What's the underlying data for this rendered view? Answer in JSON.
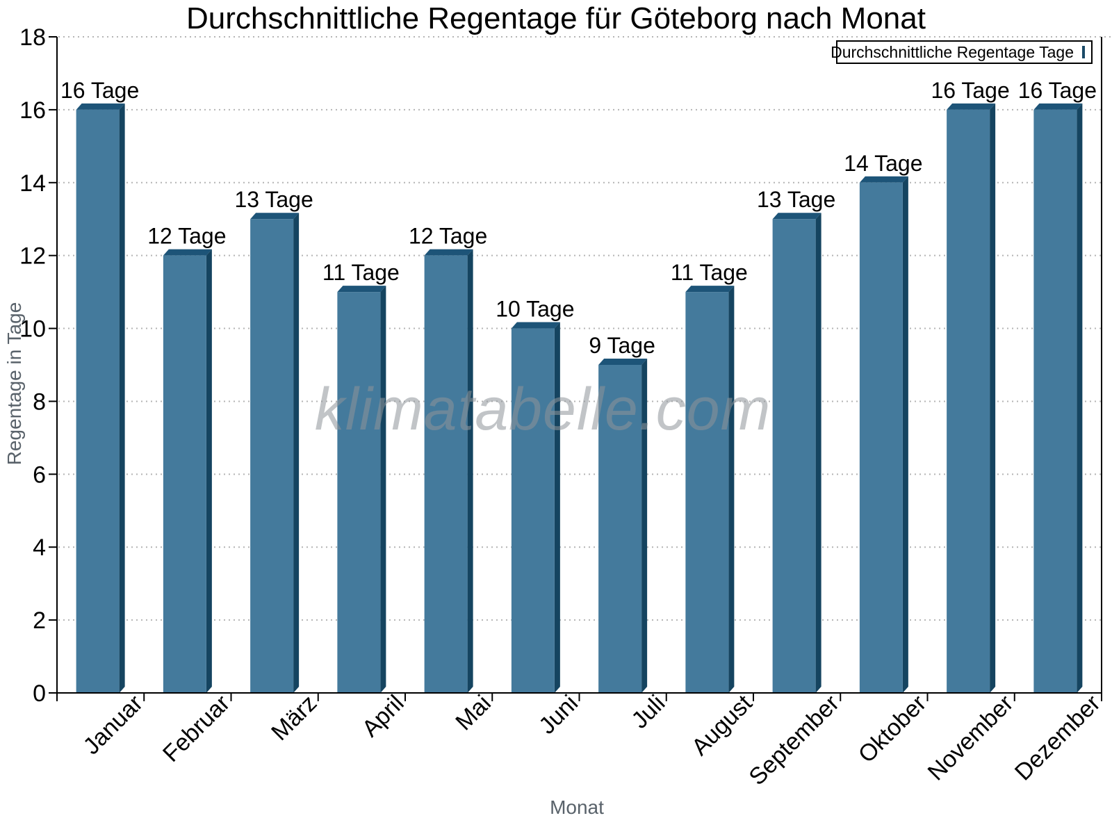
{
  "chart_data": {
    "type": "bar",
    "title": "Durchschnittliche Regentage für Göteborg nach Monat",
    "xlabel": "Monat",
    "ylabel": "Regentage in Tage",
    "categories": [
      "Januar",
      "Februar",
      "März",
      "April",
      "Mai",
      "Juni",
      "Juli",
      "August",
      "September",
      "Oktober",
      "November",
      "Dezember"
    ],
    "values": [
      16,
      12,
      13,
      11,
      12,
      10,
      9,
      11,
      13,
      14,
      16,
      16
    ],
    "bar_labels": [
      "16 Tage",
      "12 Tage",
      "13 Tage",
      "11 Tage",
      "12 Tage",
      "10 Tage",
      "9 Tage",
      "11 Tage",
      "13 Tage",
      "14 Tage",
      "16 Tage",
      "16 Tage"
    ],
    "ylim": [
      0,
      18
    ],
    "y_ticks": [
      0,
      2,
      4,
      6,
      8,
      10,
      12,
      14,
      16,
      18
    ],
    "grid": "horizontal-dotted",
    "legend": {
      "label": "Durchschnittliche Regentage Tage",
      "position": "top-right"
    },
    "watermark": "klimatabelle.com",
    "colors": {
      "bar_front": "#447A9C",
      "bar_side": "#154460",
      "bar_top": "#1D5478",
      "axis": "#000000",
      "grid": "#b4b4b4",
      "text": "#000000",
      "axis_title": "#59626a",
      "legend_border": "#000000",
      "swatch_border": "#1b4a67"
    }
  }
}
